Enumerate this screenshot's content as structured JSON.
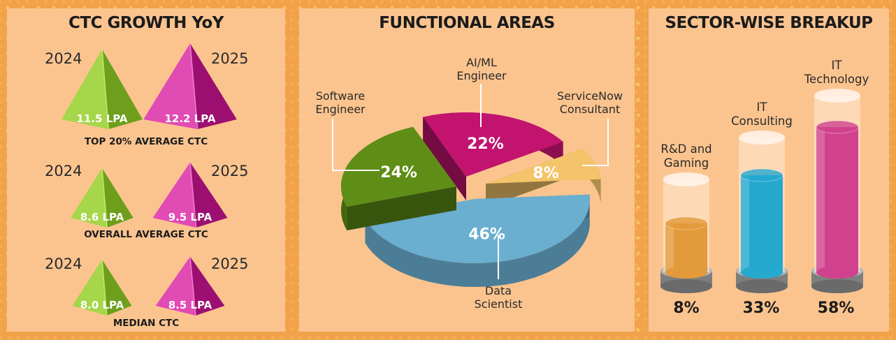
{
  "panels": {
    "ctc": {
      "title": "CTC GROWTH YoY",
      "groups": [
        {
          "metric": "TOP 20% AVERAGE CTC",
          "year_a": "2024",
          "year_b": "2025",
          "value_a": "11.5 LPA",
          "value_b": "12.2 LPA"
        },
        {
          "metric": "OVERALL AVERAGE CTC",
          "year_a": "2024",
          "year_b": "2025",
          "value_a": "8.6 LPA",
          "value_b": "9.5 LPA"
        },
        {
          "metric": "MEDIAN CTC",
          "year_a": "2024",
          "year_b": "2025",
          "value_a": "8.0 LPA",
          "value_b": "8.5 LPA"
        }
      ]
    },
    "functional": {
      "title": "FUNCTIONAL AREAS",
      "labels": {
        "ai_a": "AI/ML",
        "ai_b": "Engineer",
        "sw_a": "Software",
        "sw_b": "Engineer",
        "sn_a": "ServiceNow",
        "sn_b": "Consultant",
        "ds_a": "Data",
        "ds_b": "Scientist"
      }
    },
    "sector": {
      "title": "SECTOR-WISE BREAKUP",
      "labels": {
        "rd_a": "R&D and",
        "rd_b": "Gaming",
        "itc_a": "IT",
        "itc_b": "Consulting",
        "itt_a": "IT",
        "itt_b": "Technology"
      }
    }
  },
  "chart_data": [
    {
      "type": "bar",
      "title": "CTC GROWTH YoY",
      "categories": [
        "TOP 20% AVERAGE CTC",
        "OVERALL AVERAGE CTC",
        "MEDIAN CTC"
      ],
      "series": [
        {
          "name": "2024",
          "values": [
            11.5,
            8.6,
            8.0
          ]
        },
        {
          "name": "2025",
          "values": [
            12.2,
            9.5,
            8.5
          ]
        }
      ],
      "colors": {
        "2024": "#8cc63f",
        "2025": "#c2188c"
      }
    },
    {
      "type": "pie",
      "title": "FUNCTIONAL AREAS",
      "slices": [
        {
          "label": "AI/ML Engineer",
          "value": 22,
          "display": "22%",
          "color": "#c2136f"
        },
        {
          "label": "ServiceNow Consultant",
          "value": 8,
          "display": "8%",
          "color": "#f4c46a"
        },
        {
          "label": "Data Scientist",
          "value": 46,
          "display": "46%",
          "color": "#6aaed0"
        },
        {
          "label": "Software Engineer",
          "value": 24,
          "display": "24%",
          "color": "#5e8e16"
        }
      ]
    },
    {
      "type": "bar",
      "title": "SECTOR-WISE BREAKUP",
      "categories": [
        "R&D and Gaming",
        "IT Consulting",
        "IT Technology"
      ],
      "values": [
        8,
        33,
        58
      ],
      "display": [
        "8%",
        "33%",
        "58%"
      ],
      "colors": [
        "#e39a3a",
        "#25a9cf",
        "#d0428e"
      ]
    }
  ]
}
